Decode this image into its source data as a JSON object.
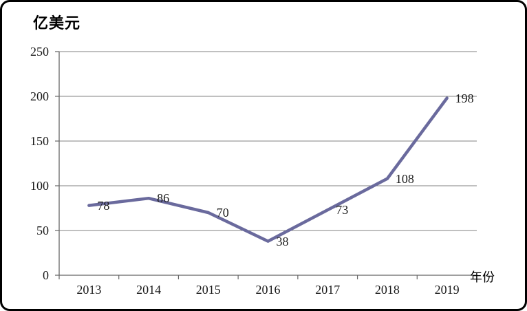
{
  "chart_data": {
    "type": "line",
    "title": "亿美元",
    "xlabel": "年份",
    "ylabel": "亿美元",
    "categories": [
      "2013",
      "2014",
      "2015",
      "2016",
      "2017",
      "2018",
      "2019"
    ],
    "values": [
      78,
      86,
      70,
      38,
      73,
      108,
      198
    ],
    "data_labels": [
      "78",
      "86",
      "70",
      "38",
      "73",
      "108",
      "198"
    ],
    "yticks": [
      0,
      50,
      100,
      150,
      200,
      250
    ],
    "ylim": [
      0,
      250
    ],
    "grid": "horizontal",
    "legend": "none",
    "colors": {
      "line": "#6a6a9d",
      "grid": "#808080",
      "axis": "#666666",
      "text": "#1a1a1a",
      "frame_border": "#000000",
      "background": "#ffffff"
    }
  }
}
